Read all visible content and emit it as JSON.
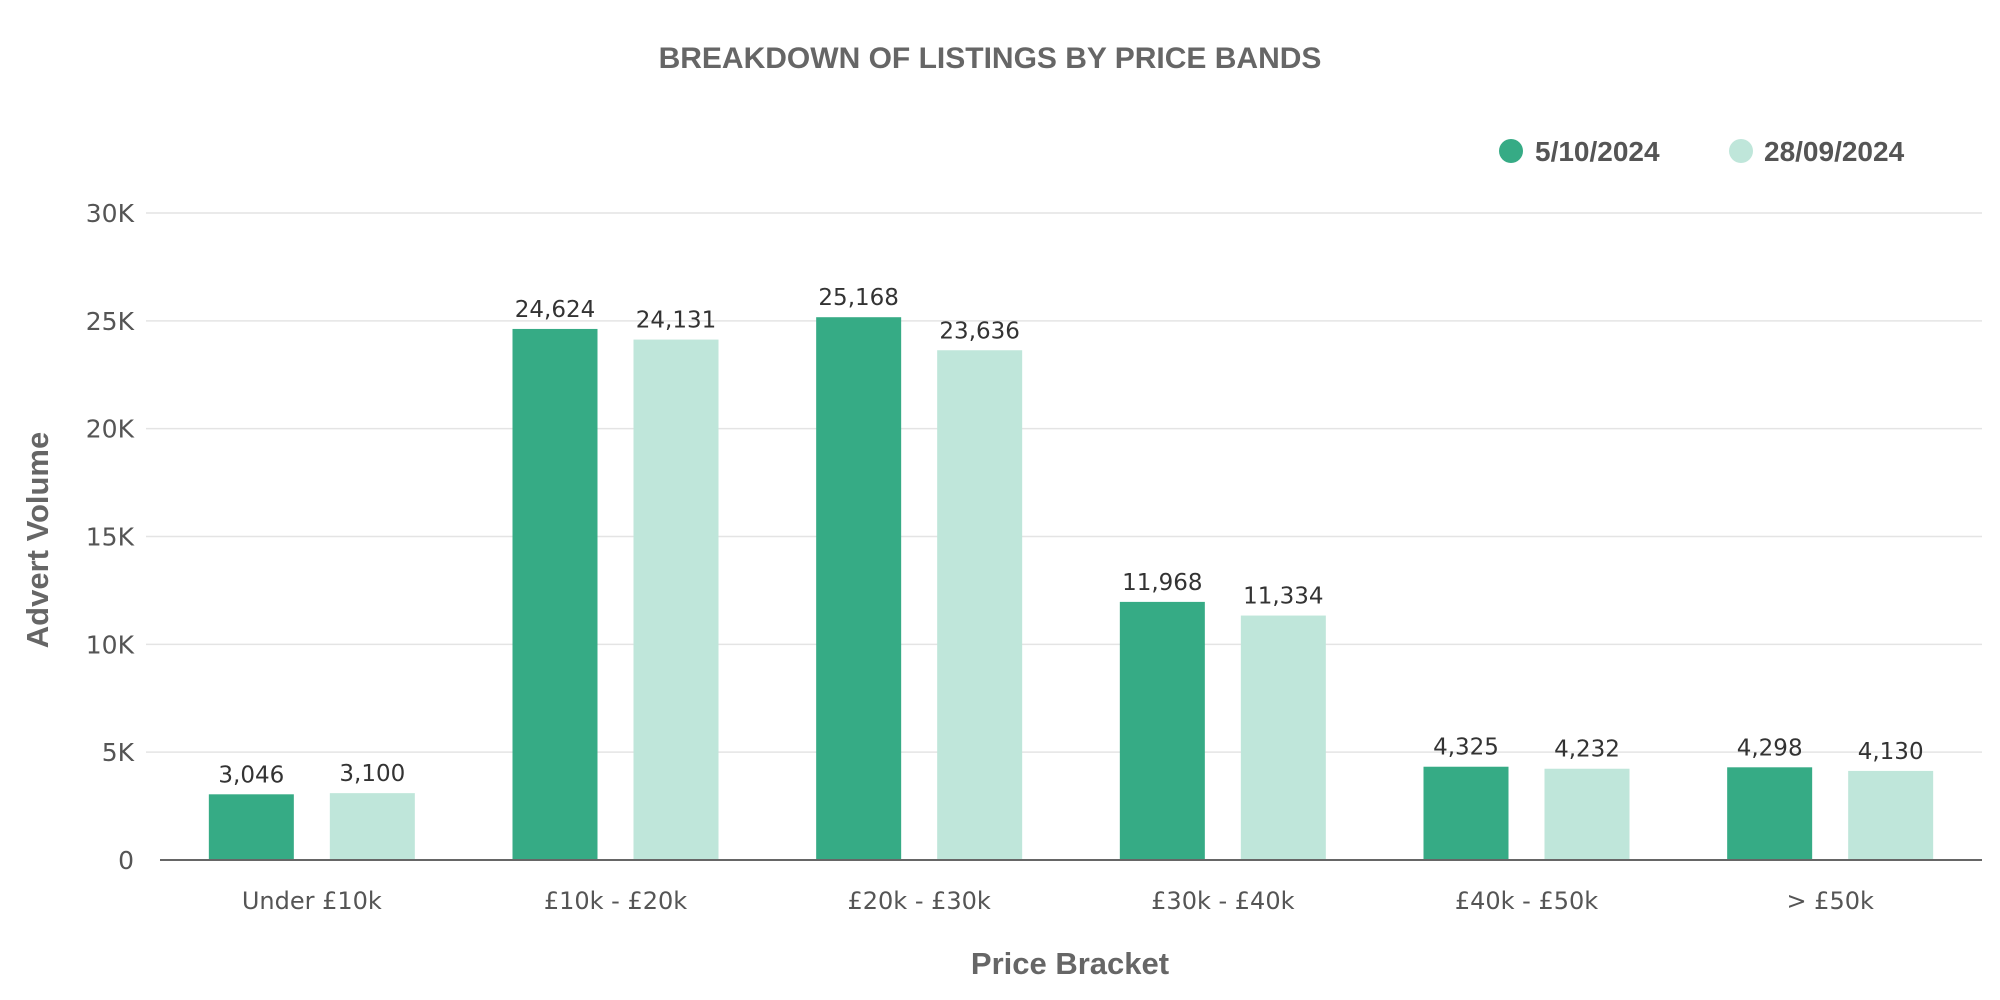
{
  "colors": {
    "series_1": "#36ab85",
    "series_2": "#bfe6da"
  },
  "chart_data": {
    "type": "bar",
    "title": "BREAKDOWN OF LISTINGS BY PRICE BANDS",
    "xlabel": "Price Bracket",
    "ylabel": "Advert Volume",
    "categories": [
      "Under £10k",
      "£10k - £20k",
      "£20k - £30k",
      "£30k - £40k",
      "£40k - £50k",
      "> £50k"
    ],
    "series": [
      {
        "name": "5/10/2024",
        "values": [
          3046,
          24624,
          25168,
          11968,
          4325,
          4298
        ],
        "labels": [
          "3,046",
          "24,624",
          "25,168",
          "11,968",
          "4,325",
          "4,298"
        ]
      },
      {
        "name": "28/09/2024",
        "values": [
          3100,
          24131,
          23636,
          11334,
          4232,
          4130
        ],
        "labels": [
          "3,100",
          "24,131",
          "23,636",
          "11,334",
          "4,232",
          "4,130"
        ]
      }
    ],
    "ylim": [
      0,
      30000
    ],
    "yticks": [
      0,
      5000,
      10000,
      15000,
      20000,
      25000,
      30000
    ],
    "ytick_labels": [
      "0",
      "5K",
      "10K",
      "15K",
      "20K",
      "25K",
      "30K"
    ],
    "grid": true,
    "legend": "top-right"
  }
}
